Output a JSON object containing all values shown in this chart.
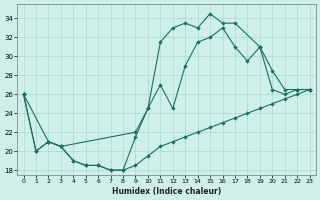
{
  "xlabel": "Humidex (Indice chaleur)",
  "xlim": [
    -0.5,
    23.5
  ],
  "ylim": [
    17.5,
    35.5
  ],
  "xticks": [
    0,
    1,
    2,
    3,
    4,
    5,
    6,
    7,
    8,
    9,
    10,
    11,
    12,
    13,
    14,
    15,
    16,
    17,
    18,
    19,
    20,
    21,
    22,
    23
  ],
  "yticks": [
    18,
    20,
    22,
    24,
    26,
    28,
    30,
    32,
    34
  ],
  "bg_color": "#cff0ea",
  "grid_color": "#a8d8d0",
  "line_color": "#1a6e65",
  "line_top_x": [
    0,
    1,
    2,
    3,
    4,
    5,
    6,
    7,
    8,
    9,
    10,
    11,
    12,
    13,
    14,
    15,
    16,
    17,
    19,
    20,
    21,
    22,
    23
  ],
  "line_top_y": [
    26.0,
    20.0,
    21.0,
    20.5,
    19.0,
    18.5,
    18.5,
    18.0,
    18.0,
    21.5,
    24.5,
    31.5,
    33.0,
    33.5,
    33.0,
    34.5,
    33.5,
    33.5,
    31.0,
    26.5,
    26.0,
    26.5,
    26.5
  ],
  "line_mid_x": [
    0,
    2,
    3,
    9,
    10,
    11,
    12,
    13,
    14,
    15,
    16,
    17,
    18,
    19,
    20,
    21,
    22,
    23
  ],
  "line_mid_y": [
    26.0,
    21.0,
    20.5,
    22.0,
    24.5,
    27.0,
    24.5,
    29.0,
    31.5,
    32.0,
    33.0,
    31.0,
    29.5,
    31.0,
    28.5,
    26.5,
    26.5,
    26.5
  ],
  "line_bot_x": [
    0,
    1,
    2,
    3,
    4,
    5,
    6,
    7,
    8,
    9,
    10,
    11,
    12,
    13,
    14,
    15,
    16,
    17,
    18,
    19,
    20,
    21,
    22,
    23
  ],
  "line_bot_y": [
    26.0,
    20.0,
    21.0,
    20.5,
    19.0,
    18.5,
    18.5,
    18.0,
    18.0,
    18.5,
    19.5,
    20.5,
    21.0,
    21.5,
    22.0,
    22.5,
    23.0,
    23.5,
    24.0,
    24.5,
    25.0,
    25.5,
    26.0,
    26.5
  ]
}
